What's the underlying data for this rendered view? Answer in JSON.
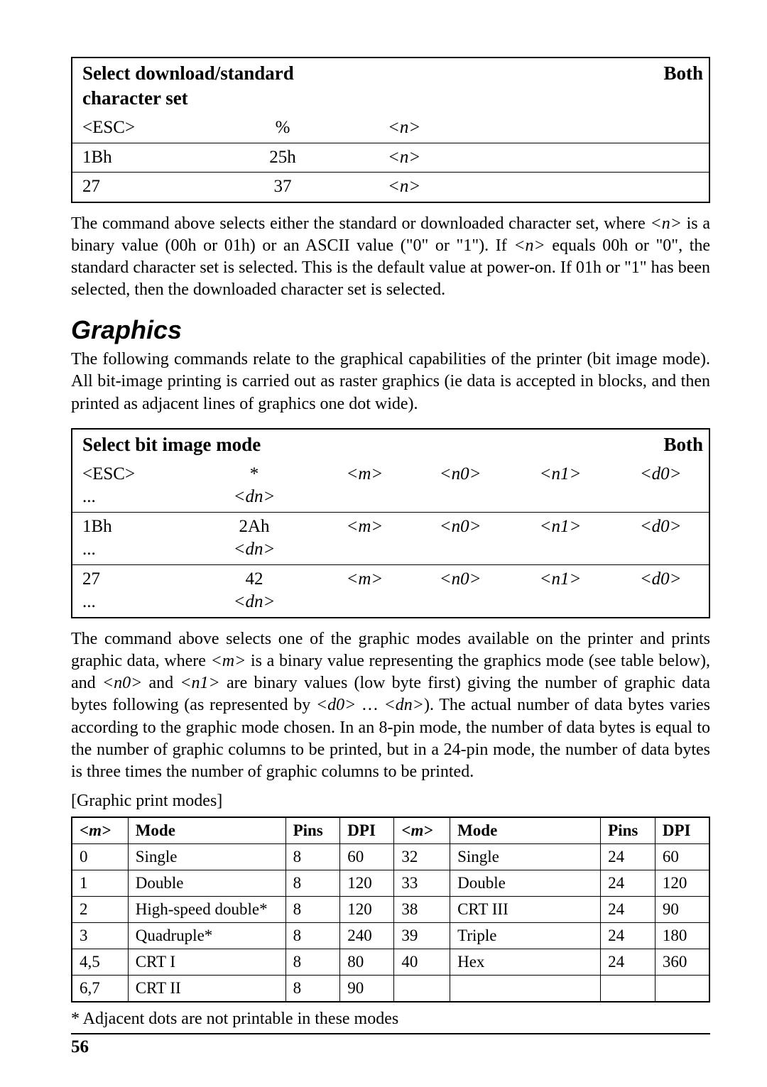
{
  "table1": {
    "title": "Select download/standard character set",
    "badge": "Both",
    "rows": [
      [
        "<ESC>",
        "%",
        "<n>"
      ],
      [
        "1Bh",
        "25h",
        "<n>"
      ],
      [
        "27",
        "37",
        "<n>"
      ]
    ],
    "italic_cols": [
      false,
      false,
      true
    ]
  },
  "para1": "The command above selects either the standard or downloaded character set, where <n> is a binary value (00h or 01h) or an ASCII value (\"0\" or \"1\"). If <n> equals 00h or \"0\", the standard character set is selected. This is the default value at power-on. If 01h or \"1\" has been selected, then the downloaded character set is selected.",
  "section_heading": "Graphics",
  "para2": "The following commands relate to the graphical capabilities of the printer (bit image mode). All bit-image printing is carried out as raster graphics (ie data is accepted in blocks, and then printed as adjacent lines of graphics one dot wide).",
  "table2": {
    "title": "Select bit image mode",
    "badge": "Both",
    "rows": [
      [
        "<ESC>",
        "*",
        "<m>",
        "<n0>",
        "<n1>",
        "<d0>",
        "...",
        "<dn>"
      ],
      [
        "1Bh",
        "2Ah",
        "<m>",
        "<n0>",
        "<n1>",
        "<d0>",
        "...",
        "<dn>"
      ],
      [
        "27",
        "42",
        "<m>",
        "<n0>",
        "<n1>",
        "<d0>",
        "...",
        "<dn>"
      ]
    ],
    "italic_cols": [
      false,
      false,
      true,
      true,
      true,
      true,
      false,
      true
    ]
  },
  "para3": "The command above selects one of the graphic modes available on the printer and prints graphic data, where <m> is a binary value representing the graphics mode (see table below), and <n0> and <n1> are binary values (low byte first) giving the number of graphic data bytes following (as represented by <d0> … <dn>). The actual number of data bytes varies according to the graphic mode chosen. In an 8-pin mode, the number of data bytes is equal to the number of graphic columns to be printed, but in a 24-pin mode, the number of data bytes is three times the number of graphic columns to be printed.",
  "modes_caption": "[Graphic print modes]",
  "modes_table": {
    "headers": [
      "<m>",
      "Mode",
      "Pins",
      "DPI",
      "<m>",
      "Mode",
      "Pins",
      "DPI"
    ],
    "rows": [
      [
        "0",
        "Single",
        "8",
        "60",
        "32",
        "Single",
        "24",
        "60"
      ],
      [
        "1",
        "Double",
        "8",
        "120",
        "33",
        "Double",
        "24",
        "120"
      ],
      [
        "2",
        "High-speed double*",
        "8",
        "120",
        "38",
        "CRT III",
        "24",
        "90"
      ],
      [
        "3",
        "Quadruple*",
        "8",
        "240",
        "39",
        "Triple",
        "24",
        "180"
      ],
      [
        "4,5",
        "CRT I",
        "8",
        "80",
        "40",
        "Hex",
        "24",
        "360"
      ],
      [
        "6,7",
        "CRT II",
        "8",
        "90",
        "",
        "",
        "",
        ""
      ]
    ]
  },
  "footnote": "*   Adjacent dots are not printable in these modes",
  "page_number": "56"
}
